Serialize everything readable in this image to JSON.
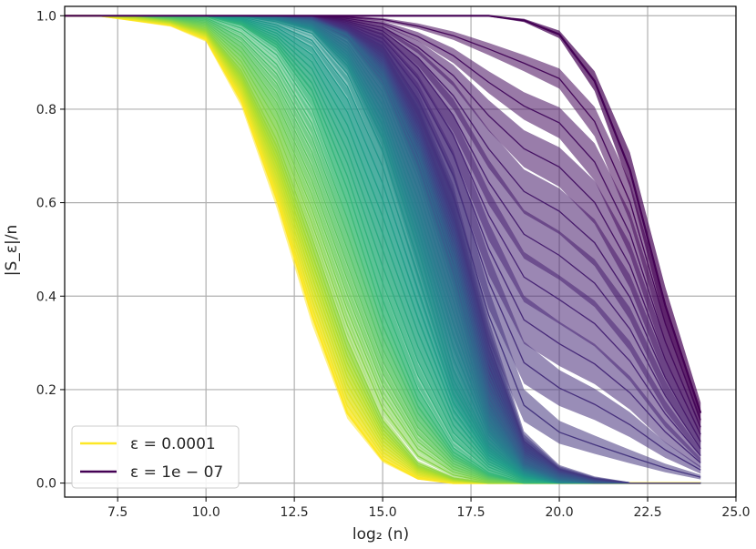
{
  "chart_data": {
    "type": "line",
    "xlabel": "log₂ (n)",
    "ylabel": "|S_ε|/n",
    "xlim": [
      6.0,
      25.0
    ],
    "ylim": [
      -0.03,
      1.02
    ],
    "x_ticks": [
      "7.5",
      "10.0",
      "12.5",
      "15.0",
      "17.5",
      "20.0",
      "22.5",
      "25.0"
    ],
    "y_ticks": [
      "0.0",
      "0.2",
      "0.4",
      "0.6",
      "0.8",
      "1.0"
    ],
    "grid": true,
    "legend_position": "bottom-left",
    "colormap": "viridis",
    "legend": [
      {
        "label": "ε = 0.0001",
        "color": "#fde725"
      },
      {
        "label": "ε = 1e − 07",
        "color": "#440154"
      }
    ],
    "x_values": [
      6,
      7,
      8,
      9,
      10,
      11,
      12,
      13,
      14,
      15,
      16,
      17,
      18,
      19,
      20,
      21,
      22,
      23,
      24
    ],
    "series_count": 60,
    "series": [
      {
        "name": "ε = 0.0001",
        "values": [
          1.0,
          1.0,
          0.99,
          0.98,
          0.95,
          0.82,
          0.61,
          0.36,
          0.15,
          0.05,
          0.01,
          0.0,
          0.0,
          0.0,
          0.0,
          0.0,
          0.0,
          0.0,
          0.0
        ],
        "band": 0.02
      },
      {
        "values": [
          1.0,
          1.0,
          1.0,
          0.99,
          0.97,
          0.88,
          0.73,
          0.52,
          0.3,
          0.13,
          0.04,
          0.01,
          0.0,
          0.0,
          0.0,
          0.0,
          0.0,
          0.0,
          0.0
        ],
        "band": 0.02
      },
      {
        "values": [
          1.0,
          1.0,
          1.0,
          1.0,
          1.0,
          0.98,
          0.93,
          0.82,
          0.62,
          0.38,
          0.19,
          0.07,
          0.02,
          0.0,
          0.0,
          0.0,
          0.0,
          0.0,
          0.0
        ],
        "band": 0.03
      },
      {
        "values": [
          1.0,
          1.0,
          1.0,
          1.0,
          1.0,
          1.0,
          0.99,
          0.97,
          0.89,
          0.73,
          0.49,
          0.23,
          0.08,
          0.02,
          0.0,
          0.0,
          0.0,
          0.0,
          0.0
        ],
        "band": 0.04
      },
      {
        "values": [
          1.0,
          1.0,
          1.0,
          1.0,
          1.0,
          1.0,
          1.0,
          0.99,
          0.96,
          0.87,
          0.7,
          0.47,
          0.17,
          0.04,
          0.01,
          0.0,
          0.0,
          0.0,
          0.0
        ],
        "band": 0.05
      },
      {
        "values": [
          1.0,
          1.0,
          1.0,
          1.0,
          1.0,
          1.0,
          1.0,
          1.0,
          0.97,
          0.92,
          0.78,
          0.58,
          0.3,
          0.09,
          0.03,
          0.01,
          0.0,
          0.0,
          0.0
        ],
        "band": 0.06
      },
      {
        "name": "ε = 1e − 07",
        "values": [
          1.0,
          1.0,
          1.0,
          1.0,
          1.0,
          1.0,
          1.0,
          1.0,
          1.0,
          1.0,
          1.0,
          1.0,
          1.0,
          0.99,
          0.96,
          0.86,
          0.67,
          0.38,
          0.15
        ],
        "band": 0.04
      }
    ]
  }
}
